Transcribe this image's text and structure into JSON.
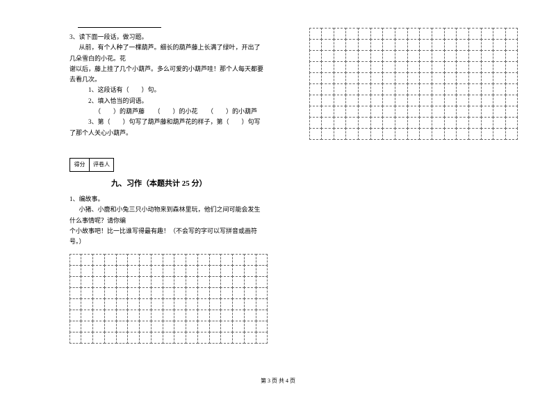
{
  "q3": {
    "blank_line_width": 120,
    "stem": "3、读下面一段话，做习题。",
    "passage_l1": "从前，有个人种了一棵葫芦。细长的葫芦藤上长满了绿叶，开出了几朵雪白的小花。花",
    "passage_l2": "谢以后，藤上挂了几个小葫芦。多么可爱的小葫芦哇！那个人每天都要去看几次。",
    "sub1": "1、这段话有（　　）句。",
    "sub2": "2、填入恰当的词语。",
    "sub2_line": "（　　）的葫芦藤　　（　　）的小花　　（　　）的小葫芦",
    "sub3": "3、第（　　）句写了葫芦藤和葫芦花的样子，第（　　）句写了那个人关心小葫芦。"
  },
  "score_labels": {
    "a": "得分",
    "b": "评卷人"
  },
  "section9": {
    "title": "九、习作（本题共计 25 分）",
    "q1_stem": "1、编故事。",
    "q1_body_l1": "小猪、小鹿和小兔三只小动物来到森林里玩，他们之间可能会发生什么事情呢？请你编",
    "q1_body_l2": "个小故事吧！比一比谁写得最有趣！（不会写的字可以写拼音或画符号。）"
  },
  "grid_left": {
    "cols": 17,
    "rows": 8
  },
  "grid_right": {
    "cols": 17,
    "rows": 10
  },
  "footer": "第 3 页 共 4 页",
  "colors": {
    "text": "#000000",
    "bg": "#ffffff",
    "dash": "#666666"
  }
}
